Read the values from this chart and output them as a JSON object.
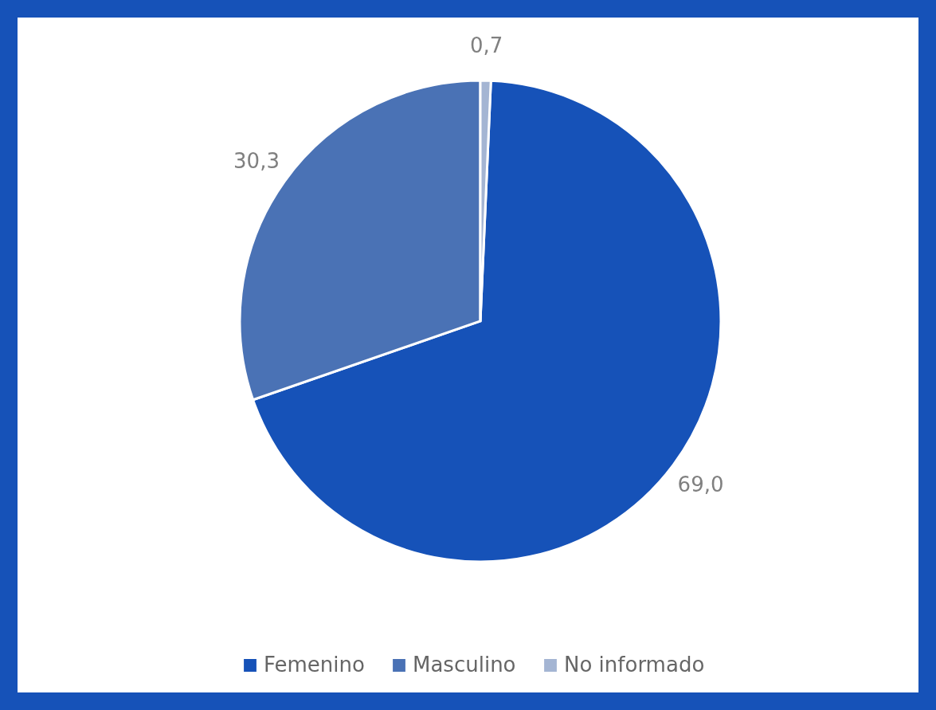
{
  "chart_data": {
    "type": "pie",
    "categories": [
      "Femenino",
      "Masculino",
      "No informado"
    ],
    "values": [
      69.0,
      30.3,
      0.7
    ],
    "colors": [
      "#1652b8",
      "#4a72b5",
      "#a4b5d3"
    ],
    "value_labels": [
      "69,0",
      "30,3",
      "0,7"
    ],
    "legend": "bottom"
  }
}
